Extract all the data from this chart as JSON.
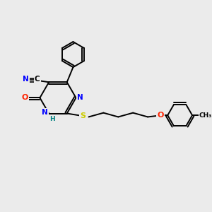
{
  "background_color": "#ebebeb",
  "fig_size": [
    3.0,
    3.0
  ],
  "dpi": 100,
  "colors": {
    "C": "#000000",
    "N": "#0000ff",
    "O": "#ff2200",
    "S": "#cccc00",
    "H": "#008080",
    "bond": "#000000"
  },
  "lw": 1.4
}
